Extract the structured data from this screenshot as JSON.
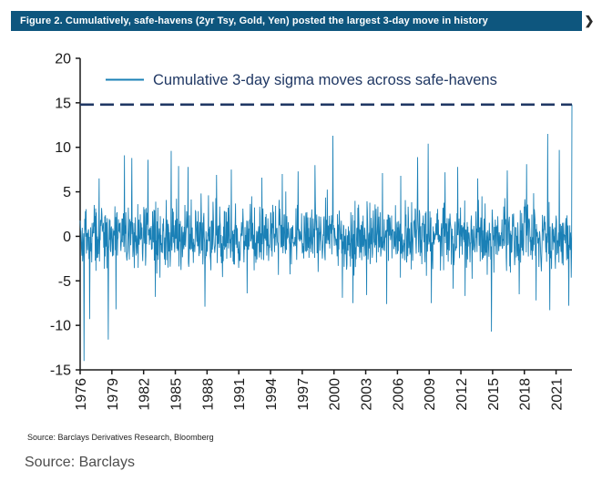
{
  "header": {
    "figure_label": "Figure 2. Cumulatively, safe-havens (2yr Tsy, Gold, Yen) posted the largest 3-day move in history",
    "chevron": "❯",
    "bg_color": "#0e567e"
  },
  "chart_data": {
    "type": "line",
    "title": "",
    "legend": [
      {
        "label": "Cumulative 3-day sigma moves across safe-havens",
        "color": "#1a80b6"
      }
    ],
    "series_color": "#1a80b6",
    "axis_color": "#1a1a1a",
    "legend_text_color": "#203864",
    "x_start": 1976,
    "x_end": 2022.5,
    "x_ticks": [
      1976,
      1979,
      1982,
      1985,
      1988,
      1991,
      1994,
      1997,
      2000,
      2003,
      2006,
      2009,
      2012,
      2015,
      2018,
      2021
    ],
    "ylim": [
      -15,
      20
    ],
    "y_ticks": [
      20,
      15,
      10,
      5,
      0,
      -5,
      -10,
      -15
    ],
    "reference_line": {
      "value": 14.8,
      "style": "dashed",
      "color": "#203864"
    },
    "noise": {
      "seed": 42,
      "points": 1400,
      "base_amplitude": 2.0
    },
    "spikes": [
      {
        "x": 1976.35,
        "v": -14.0
      },
      {
        "x": 1976.9,
        "v": -9.3
      },
      {
        "x": 1977.8,
        "v": 6.5
      },
      {
        "x": 1978.65,
        "v": -11.6
      },
      {
        "x": 1979.4,
        "v": -8.2
      },
      {
        "x": 1980.2,
        "v": 9.1
      },
      {
        "x": 1980.9,
        "v": 8.8
      },
      {
        "x": 1982.4,
        "v": 8.6
      },
      {
        "x": 1983.1,
        "v": -6.8
      },
      {
        "x": 1984.6,
        "v": 9.6
      },
      {
        "x": 1985.3,
        "v": 7.9
      },
      {
        "x": 1986.2,
        "v": 7.8
      },
      {
        "x": 1987.8,
        "v": -7.9
      },
      {
        "x": 1988.9,
        "v": 6.9
      },
      {
        "x": 1990.3,
        "v": 7.5
      },
      {
        "x": 1991.8,
        "v": -6.4
      },
      {
        "x": 1993.2,
        "v": 6.6
      },
      {
        "x": 1995.1,
        "v": 7.0
      },
      {
        "x": 1996.6,
        "v": 7.3
      },
      {
        "x": 1998.2,
        "v": 8.0
      },
      {
        "x": 1999.9,
        "v": 11.3
      },
      {
        "x": 2000.8,
        "v": -6.9
      },
      {
        "x": 2001.8,
        "v": -7.5
      },
      {
        "x": 2003.1,
        "v": -6.6
      },
      {
        "x": 2004.6,
        "v": 7.1
      },
      {
        "x": 2006.3,
        "v": 6.8
      },
      {
        "x": 2007.9,
        "v": 8.9
      },
      {
        "x": 2008.9,
        "v": 10.4
      },
      {
        "x": 2009.2,
        "v": -7.5
      },
      {
        "x": 2010.5,
        "v": 7.2
      },
      {
        "x": 2011.7,
        "v": 7.8
      },
      {
        "x": 2012.4,
        "v": -6.7
      },
      {
        "x": 2013.6,
        "v": 6.5
      },
      {
        "x": 2014.9,
        "v": -10.7
      },
      {
        "x": 2016.4,
        "v": 7.4
      },
      {
        "x": 2017.5,
        "v": -6.5
      },
      {
        "x": 2018.2,
        "v": 8.1
      },
      {
        "x": 2019.1,
        "v": -7.2
      },
      {
        "x": 2020.2,
        "v": 11.5
      },
      {
        "x": 2020.4,
        "v": -8.3
      },
      {
        "x": 2021.3,
        "v": 9.7
      },
      {
        "x": 2022.2,
        "v": -7.8
      },
      {
        "x": 2022.5,
        "v": 14.8
      }
    ]
  },
  "footer": {
    "source_small": "Source: Barclays Derivatives Research, Bloomberg",
    "source_caption": "Source: Barclays"
  }
}
